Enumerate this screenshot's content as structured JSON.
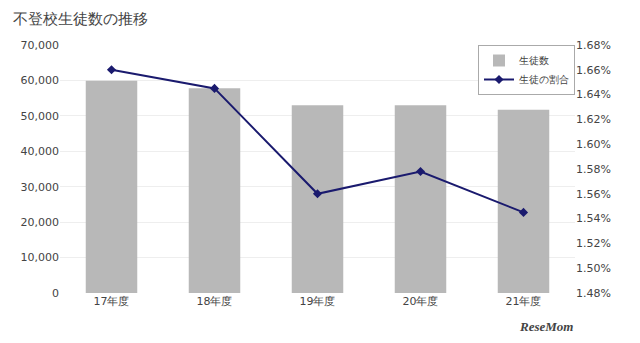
{
  "chart_data": {
    "type": "bar",
    "title": "不登校生徒数の推移",
    "categories": [
      "17年度",
      "18年度",
      "19年度",
      "20年度",
      "21年度"
    ],
    "series": [
      {
        "name": "生徒数",
        "type": "bar",
        "color": "#b8b8b8",
        "values": [
          59900,
          57800,
          53000,
          53000,
          51700
        ]
      },
      {
        "name": "生徒の割合",
        "type": "line",
        "axis": "y2",
        "color": "#1a1a6e",
        "marker": "diamond",
        "values": [
          1.66,
          1.645,
          1.56,
          1.578,
          1.545
        ]
      }
    ],
    "ylim": [
      0,
      70000
    ],
    "yticks": [
      0,
      {
        "value": 10000,
        "label": "10,000"
      },
      {
        "value": 20000,
        "label": "20,000"
      },
      {
        "value": 30000,
        "label": "30,000"
      },
      {
        "value": 40000,
        "label": "40,000"
      },
      {
        "value": 50000,
        "label": "50,000"
      },
      {
        "value": 60000,
        "label": "60,000"
      },
      {
        "value": 70000,
        "label": "70,000"
      }
    ],
    "y2lim": [
      1.48,
      1.68
    ],
    "y2ticks": [
      {
        "value": 1.48,
        "label": "1.48%"
      },
      {
        "value": 1.5,
        "label": "1.50%"
      },
      {
        "value": 1.52,
        "label": "1.52%"
      },
      {
        "value": 1.54,
        "label": "1.54%"
      },
      {
        "value": 1.56,
        "label": "1.56%"
      },
      {
        "value": 1.58,
        "label": "1.58%"
      },
      {
        "value": 1.6,
        "label": "1.60%"
      },
      {
        "value": 1.62,
        "label": "1.62%"
      },
      {
        "value": 1.64,
        "label": "1.64%"
      },
      {
        "value": 1.66,
        "label": "1.66%"
      },
      {
        "value": 1.68,
        "label": "1.68%"
      }
    ],
    "grid": true,
    "legend": "upper right",
    "annotations": [
      "ReseMom"
    ]
  }
}
